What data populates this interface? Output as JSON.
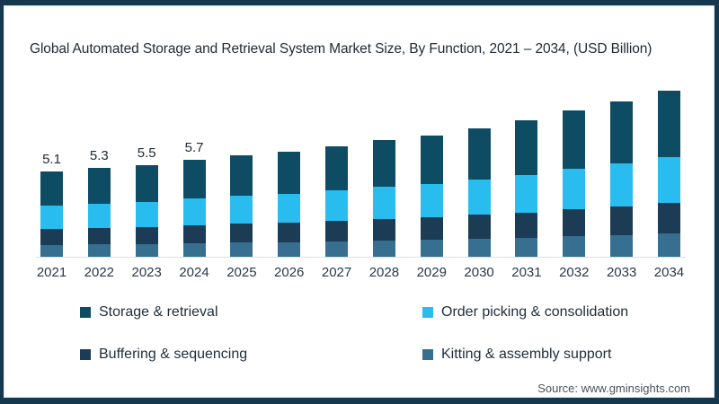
{
  "title": "Global Automated Storage and Retrieval System Market Size, By Function, 2021 – 2034, (USD Billion)",
  "source": "Source: www.gminsights.com",
  "colors": {
    "frame_border": "#16384f",
    "storage": "#0e4c63",
    "order": "#29bcef",
    "buffering": "#1c3c55",
    "kitting": "#376f91",
    "axis_line": "#dcdfe1"
  },
  "legend": [
    {
      "label": "Storage & retrieval",
      "color_key": "storage"
    },
    {
      "label": "Order picking & consolidation",
      "color_key": "order"
    },
    {
      "label": "Buffering & sequencing",
      "color_key": "buffering"
    },
    {
      "label": "Kitting & assembly support",
      "color_key": "kitting"
    }
  ],
  "chart_data": {
    "type": "bar",
    "stacked": true,
    "stack_order": "top-to-bottom",
    "title": "Global Automated Storage and Retrieval System Market Size, By Function, 2021 – 2034, (USD Billion)",
    "xlabel": "",
    "ylabel": "USD Billion",
    "ylim": [
      0,
      10.5
    ],
    "grid": false,
    "legend_position": "bottom",
    "categories": [
      "2021",
      "2022",
      "2023",
      "2024",
      "2025",
      "2026",
      "2027",
      "2028",
      "2029",
      "2030",
      "2031",
      "2032",
      "2033",
      "2034"
    ],
    "totals": [
      5.1,
      5.3,
      5.5,
      5.7,
      6.0,
      6.2,
      6.5,
      6.9,
      7.2,
      7.6,
      8.1,
      8.6,
      9.2,
      9.8
    ],
    "bar_labels": [
      "5.1",
      "5.3",
      "5.5",
      "5.7",
      "",
      "",
      "",
      "",
      "",
      "",
      "",
      "",
      "",
      ""
    ],
    "series": [
      {
        "name": "Storage & retrieval",
        "color_key": "storage",
        "values": [
          2.04,
          2.12,
          2.2,
          2.28,
          2.4,
          2.48,
          2.6,
          2.76,
          2.88,
          3.04,
          3.24,
          3.44,
          3.68,
          3.92
        ]
      },
      {
        "name": "Order picking & consolidation",
        "color_key": "order",
        "values": [
          1.4,
          1.46,
          1.51,
          1.57,
          1.65,
          1.71,
          1.79,
          1.9,
          1.98,
          2.09,
          2.23,
          2.37,
          2.53,
          2.7
        ]
      },
      {
        "name": "Buffering & sequencing",
        "color_key": "buffering",
        "values": [
          0.94,
          0.98,
          1.02,
          1.05,
          1.11,
          1.15,
          1.2,
          1.28,
          1.33,
          1.41,
          1.5,
          1.59,
          1.7,
          1.81
        ]
      },
      {
        "name": "Kitting & assembly support",
        "color_key": "kitting",
        "values": [
          0.71,
          0.74,
          0.77,
          0.8,
          0.84,
          0.87,
          0.91,
          0.97,
          1.01,
          1.06,
          1.13,
          1.2,
          1.29,
          1.37
        ]
      }
    ]
  }
}
